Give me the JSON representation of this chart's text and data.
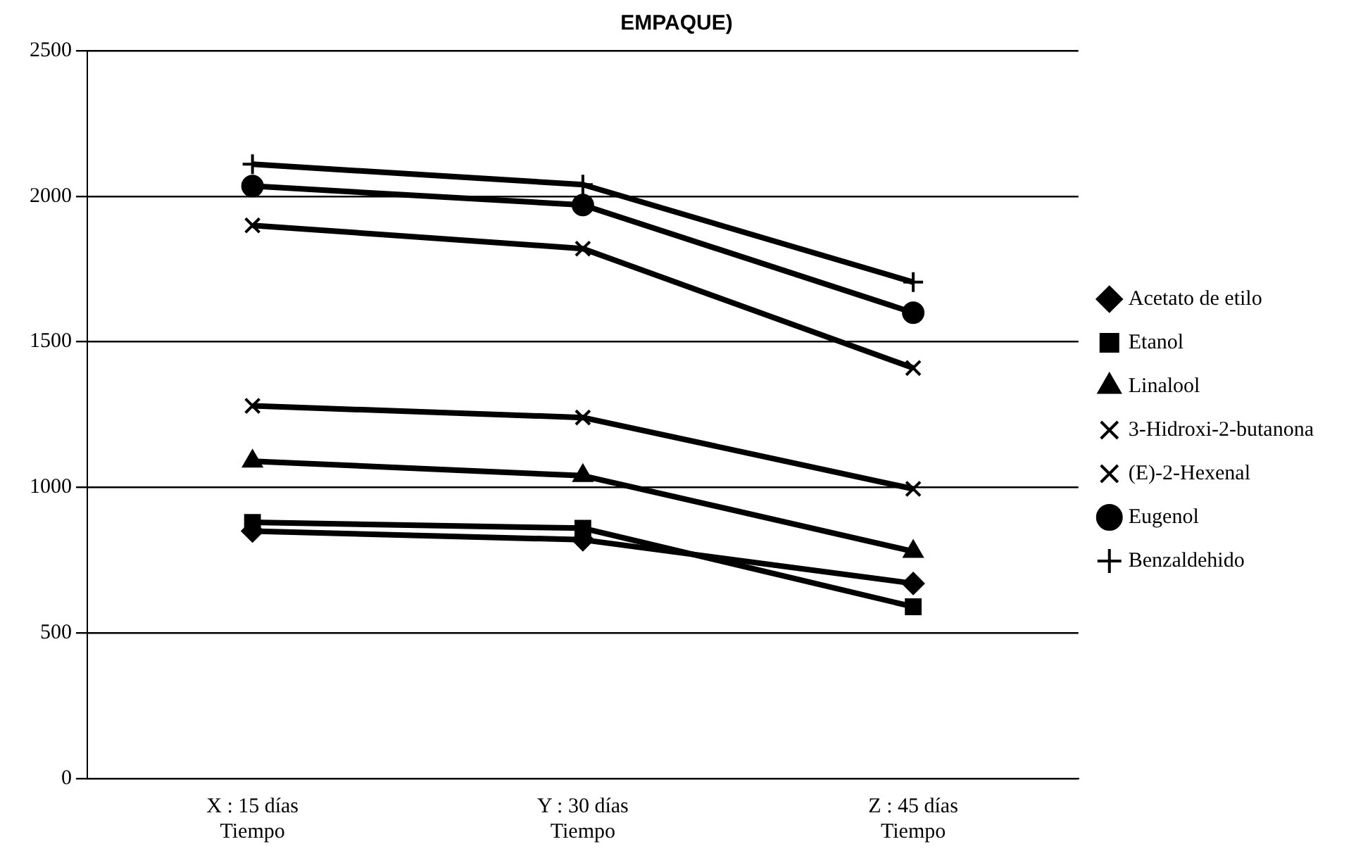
{
  "chart_data": {
    "type": "line",
    "title": "EMPAQUE)",
    "categories": [
      "X : 15 días\nTiempo",
      "Y : 30 días\nTiempo",
      "Z : 45 días\nTiempo"
    ],
    "series": [
      {
        "name": "Acetato de etilo",
        "color": "#000000",
        "marker": "diamond",
        "values": [
          850,
          820,
          670
        ]
      },
      {
        "name": "Etanol",
        "color": "#000000",
        "marker": "square",
        "values": [
          880,
          860,
          590
        ]
      },
      {
        "name": "Linalool",
        "color": "#000000",
        "marker": "triangle",
        "values": [
          1090,
          1040,
          780
        ]
      },
      {
        "name": "3-Hidroxi-2-butanona",
        "color": "#000000",
        "marker": "cross",
        "values": [
          1280,
          1240,
          995
        ]
      },
      {
        "name": "(E)-2-Hexenal",
        "color": "#000000",
        "marker": "cross",
        "values": [
          1900,
          1820,
          1410
        ]
      },
      {
        "name": "Eugenol",
        "color": "#000000",
        "marker": "circle",
        "values": [
          2035,
          1970,
          1600
        ]
      },
      {
        "name": "Benzaldehido",
        "color": "#000000",
        "marker": "plus",
        "values": [
          2110,
          2040,
          1705
        ]
      }
    ],
    "ylim": [
      0,
      2500
    ],
    "yticks": [
      0,
      500,
      1000,
      1500,
      2000,
      2500
    ],
    "grid": "y",
    "legend": "right",
    "line_style": "solid"
  }
}
